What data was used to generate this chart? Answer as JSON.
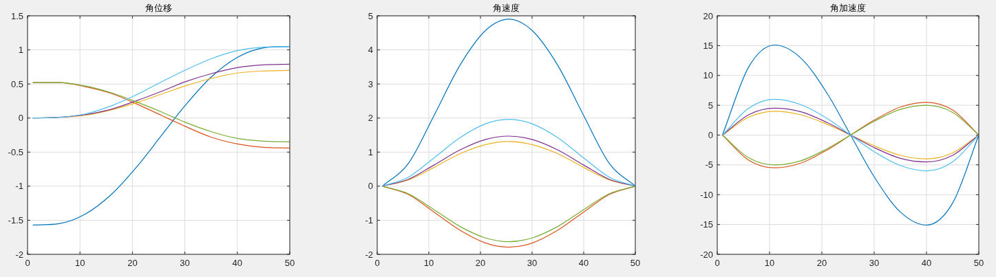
{
  "chart_data": [
    {
      "type": "line",
      "title": "角位移",
      "x": [
        1,
        6,
        11,
        16,
        21,
        25.5,
        30,
        35,
        40,
        45,
        50
      ],
      "xlim": [
        0,
        50
      ],
      "xticks": [
        0,
        10,
        20,
        30,
        40,
        50
      ],
      "ylim": [
        -2,
        1.5
      ],
      "yticks": [
        -2,
        -1.5,
        -1,
        -0.5,
        0,
        0.5,
        1,
        1.5
      ],
      "grid": true,
      "series": [
        {
          "color": "#0072bd",
          "values": [
            -1.57,
            -1.55,
            -1.41,
            -1.12,
            -0.7,
            -0.26,
            0.18,
            0.6,
            0.89,
            1.03,
            1.05
          ]
        },
        {
          "color": "#d95319",
          "values": [
            0.52,
            0.52,
            0.46,
            0.36,
            0.2,
            0.04,
            -0.12,
            -0.28,
            -0.38,
            -0.43,
            -0.44
          ]
        },
        {
          "color": "#edb120",
          "values": [
            0,
            0.01,
            0.04,
            0.12,
            0.23,
            0.35,
            0.47,
            0.58,
            0.66,
            0.69,
            0.7
          ]
        },
        {
          "color": "#7e2f8e",
          "values": [
            0,
            0.01,
            0.05,
            0.13,
            0.26,
            0.39,
            0.53,
            0.65,
            0.74,
            0.78,
            0.79
          ]
        },
        {
          "color": "#77ac30",
          "values": [
            0.52,
            0.52,
            0.47,
            0.37,
            0.23,
            0.09,
            -0.06,
            -0.2,
            -0.3,
            -0.34,
            -0.35
          ]
        },
        {
          "color": "#4dbeee",
          "values": [
            0,
            0.01,
            0.06,
            0.18,
            0.35,
            0.53,
            0.7,
            0.87,
            0.99,
            1.04,
            1.05
          ]
        }
      ]
    },
    {
      "type": "line",
      "title": "角速度",
      "x": [
        1,
        6,
        11,
        16,
        21,
        25.5,
        30,
        35,
        40,
        45,
        50
      ],
      "xlim": [
        0,
        50
      ],
      "xticks": [
        0,
        10,
        20,
        30,
        40,
        50
      ],
      "ylim": [
        -2,
        5
      ],
      "yticks": [
        -2,
        -1,
        0,
        1,
        2,
        3,
        4,
        5
      ],
      "grid": true,
      "series": [
        {
          "color": "#0072bd",
          "values": [
            0,
            0.66,
            2.07,
            3.54,
            4.57,
            4.9,
            4.57,
            3.54,
            2.07,
            0.66,
            0
          ]
        },
        {
          "color": "#d95319",
          "values": [
            0,
            -0.24,
            -0.76,
            -1.29,
            -1.67,
            -1.79,
            -1.67,
            -1.29,
            -0.76,
            -0.24,
            0
          ]
        },
        {
          "color": "#edb120",
          "values": [
            0,
            0.18,
            0.55,
            0.95,
            1.22,
            1.31,
            1.22,
            0.95,
            0.55,
            0.18,
            0
          ]
        },
        {
          "color": "#7e2f8e",
          "values": [
            0,
            0.2,
            0.62,
            1.06,
            1.37,
            1.47,
            1.37,
            1.06,
            0.62,
            0.2,
            0
          ]
        },
        {
          "color": "#77ac30",
          "values": [
            0,
            -0.22,
            -0.69,
            -1.18,
            -1.52,
            -1.63,
            -1.52,
            -1.18,
            -0.69,
            -0.22,
            0
          ]
        },
        {
          "color": "#4dbeee",
          "values": [
            0,
            0.26,
            0.83,
            1.42,
            1.83,
            1.96,
            1.83,
            1.42,
            0.83,
            0.26,
            0
          ]
        }
      ]
    },
    {
      "type": "line",
      "title": "角加速度",
      "x": [
        1,
        6,
        11,
        16,
        21,
        25.5,
        30,
        35,
        40,
        45,
        50
      ],
      "xlim": [
        0,
        50
      ],
      "xticks": [
        0,
        10,
        20,
        30,
        40,
        50
      ],
      "ylim": [
        -20,
        20
      ],
      "yticks": [
        -20,
        -15,
        -10,
        -5,
        0,
        5,
        10,
        15,
        20
      ],
      "grid": true,
      "series": [
        {
          "color": "#0072bd",
          "values": [
            0,
            11.4,
            15.1,
            12.9,
            7.0,
            0,
            -7.0,
            -12.9,
            -15.1,
            -11.4,
            0
          ]
        },
        {
          "color": "#d95319",
          "values": [
            0,
            -4.2,
            -5.5,
            -4.7,
            -2.5,
            0,
            2.5,
            4.7,
            5.5,
            4.2,
            0
          ]
        },
        {
          "color": "#edb120",
          "values": [
            0,
            3.0,
            4.0,
            3.4,
            1.8,
            0,
            -1.8,
            -3.4,
            -4.0,
            -3.0,
            0
          ]
        },
        {
          "color": "#7e2f8e",
          "values": [
            0,
            3.4,
            4.5,
            3.9,
            2.1,
            0,
            -2.1,
            -3.9,
            -4.5,
            -3.4,
            0
          ]
        },
        {
          "color": "#77ac30",
          "values": [
            0,
            -3.8,
            -5.0,
            -4.3,
            -2.3,
            0,
            2.3,
            4.3,
            5.0,
            3.8,
            0
          ]
        },
        {
          "color": "#4dbeee",
          "values": [
            0,
            4.5,
            6.0,
            5.1,
            2.8,
            0,
            -2.8,
            -5.1,
            -6.0,
            -4.5,
            0
          ]
        }
      ]
    }
  ]
}
